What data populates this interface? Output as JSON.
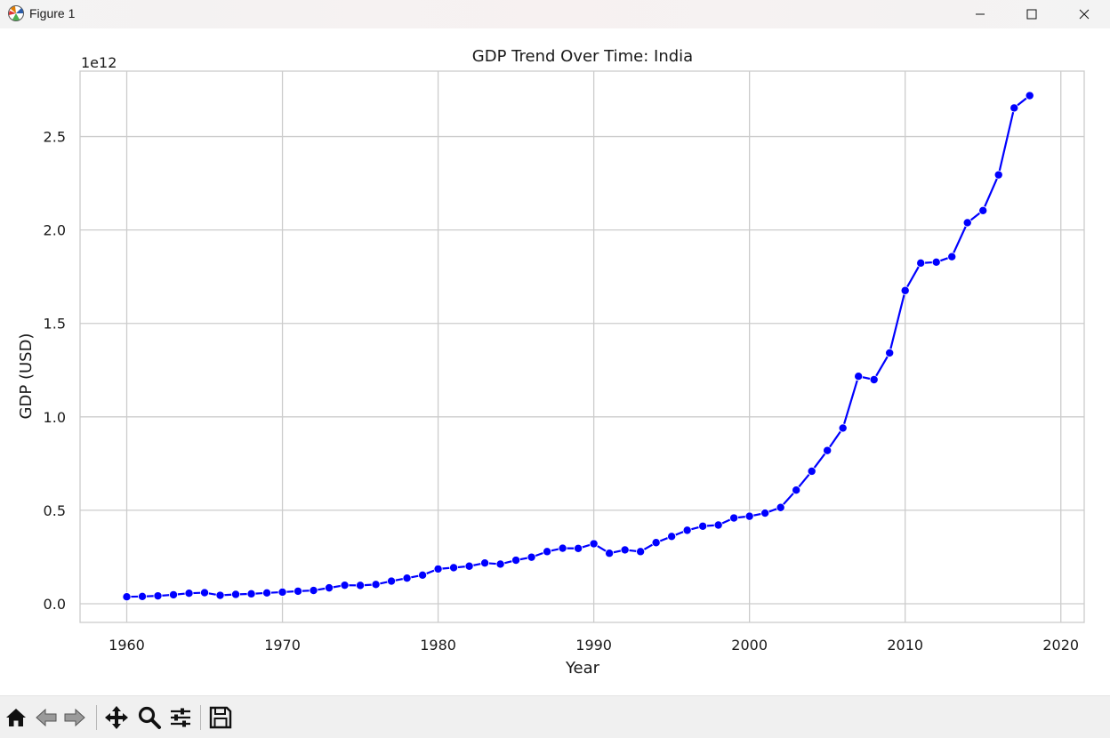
{
  "window": {
    "title": "Figure 1",
    "icons": [
      "matplotlib-logo-icon",
      "minimize-icon",
      "maximize-icon",
      "close-icon"
    ]
  },
  "toolbar": {
    "icons": [
      "home-icon",
      "back-arrow-icon",
      "forward-arrow-icon",
      "pan-move-icon",
      "zoom-magnifier-icon",
      "configure-subplots-icon",
      "save-floppy-icon"
    ]
  },
  "chart_data": {
    "type": "line",
    "title": "GDP Trend Over Time: India",
    "xlabel": "Year",
    "ylabel": "GDP (USD)",
    "y_offset_label": "1e12",
    "xlim": [
      1957,
      2021.5
    ],
    "ylim": [
      -0.1,
      2.85
    ],
    "y_units": "1e12 USD",
    "x_ticks": [
      1960,
      1970,
      1980,
      1990,
      2000,
      2010,
      2020
    ],
    "y_ticks": [
      0.0,
      0.5,
      1.0,
      1.5,
      2.0,
      2.5
    ],
    "y_tick_labels": [
      "0.0",
      "0.5",
      "1.0",
      "1.5",
      "2.0",
      "2.5"
    ],
    "grid": true,
    "marker": "circle",
    "line_color": "#0000ff",
    "series": [
      {
        "x": [
          1960,
          1961,
          1962,
          1963,
          1964,
          1965,
          1966,
          1967,
          1968,
          1969,
          1970,
          1971,
          1972,
          1973,
          1974,
          1975,
          1976,
          1977,
          1978,
          1979,
          1980,
          1981,
          1982,
          1983,
          1984,
          1985,
          1986,
          1987,
          1988,
          1989,
          1990,
          1991,
          1992,
          1993,
          1994,
          1995,
          1996,
          1997,
          1998,
          1999,
          2000,
          2001,
          2002,
          2003,
          2004,
          2005,
          2006,
          2007,
          2008,
          2009,
          2010,
          2011,
          2012,
          2013,
          2014,
          2015,
          2016,
          2017,
          2018
        ],
        "values": [
          0.037,
          0.039,
          0.042,
          0.048,
          0.056,
          0.059,
          0.045,
          0.05,
          0.053,
          0.058,
          0.062,
          0.067,
          0.071,
          0.085,
          0.099,
          0.098,
          0.103,
          0.121,
          0.137,
          0.153,
          0.186,
          0.193,
          0.201,
          0.218,
          0.212,
          0.233,
          0.249,
          0.279,
          0.297,
          0.296,
          0.321,
          0.27,
          0.288,
          0.279,
          0.327,
          0.36,
          0.393,
          0.415,
          0.421,
          0.459,
          0.468,
          0.485,
          0.515,
          0.608,
          0.709,
          0.82,
          0.94,
          1.217,
          1.199,
          1.342,
          1.676,
          1.823,
          1.828,
          1.857,
          2.039,
          2.104,
          2.295,
          2.653,
          2.719
        ]
      }
    ]
  }
}
